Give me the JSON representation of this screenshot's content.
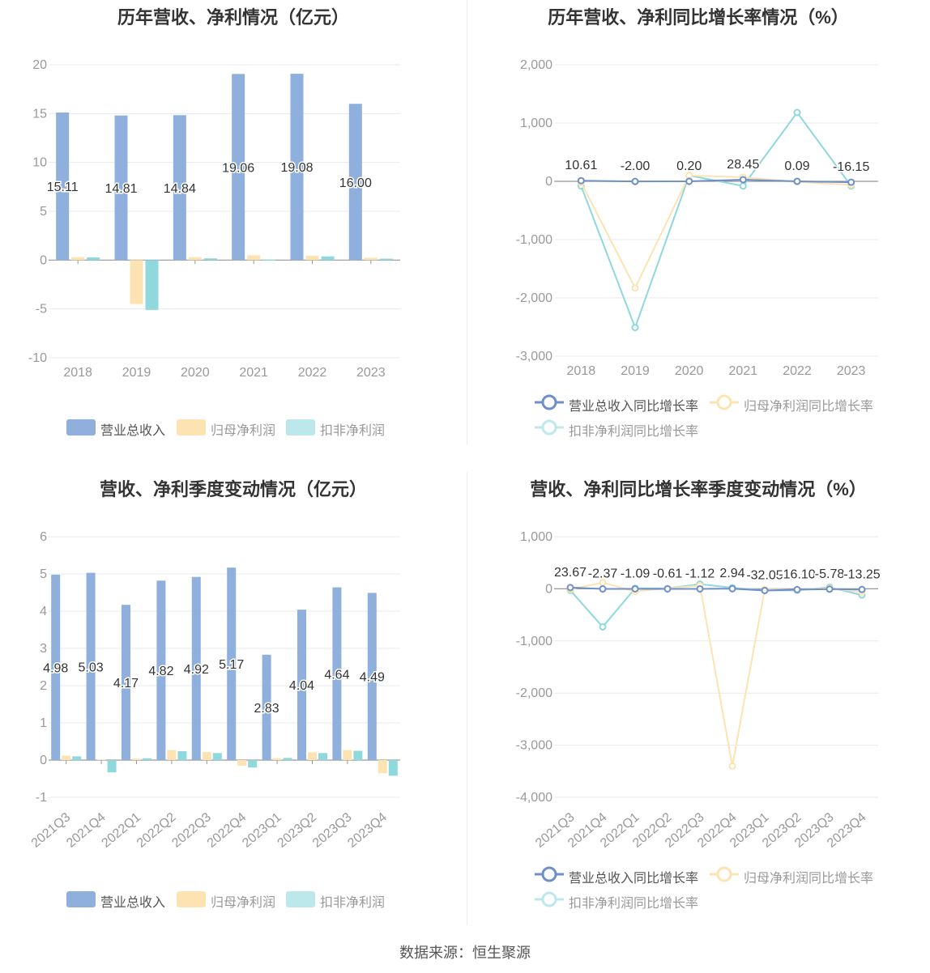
{
  "source": "数据来源：恒生聚源",
  "colors": {
    "revenue": "#8fb0dd",
    "net": "#fde3b2",
    "deducted": "#8fd8dc",
    "grid": "#e6e9f2",
    "axis": "#999999",
    "text": "#999999",
    "label": "#333333"
  },
  "legend_bar": [
    "营业总收入",
    "归母净利润",
    "扣非净利润"
  ],
  "legend_line": [
    "营业总收入同比增长率",
    "归母净利润同比增长率",
    "扣非净利润同比增长率"
  ],
  "chart_data": [
    {
      "id": "annual_values",
      "type": "bar",
      "title": "历年营收、净利情况（亿元）",
      "categories": [
        "2018",
        "2019",
        "2020",
        "2021",
        "2022",
        "2023"
      ],
      "ylim": [
        -10,
        20
      ],
      "yticks": [
        "-10",
        "-5",
        "0",
        "5",
        "10",
        "15",
        "20"
      ],
      "series": [
        {
          "name": "营业总收入",
          "values": [
            15.11,
            14.81,
            14.84,
            19.06,
            19.08,
            16.0
          ],
          "labels": [
            "15.11",
            "14.81",
            "14.84",
            "19.06",
            "19.08",
            "16.00"
          ]
        },
        {
          "name": "归母净利润",
          "values": [
            0.3,
            -4.5,
            0.3,
            0.5,
            0.45,
            0.25
          ]
        },
        {
          "name": "扣非净利润",
          "values": [
            0.28,
            -5.1,
            0.18,
            0.02,
            0.38,
            0.15
          ]
        }
      ]
    },
    {
      "id": "annual_growth",
      "type": "line",
      "title": "历年营收、净利同比增长率情况（%）",
      "categories": [
        "2018",
        "2019",
        "2020",
        "2021",
        "2022",
        "2023"
      ],
      "ylim": [
        -3000,
        2000
      ],
      "yticks": [
        "-3,000",
        "-2,000",
        "-1,000",
        "0",
        "1,000",
        "2,000"
      ],
      "series": [
        {
          "name": "营业总收入同比增长率",
          "values": [
            10.61,
            -2.0,
            0.2,
            28.45,
            0.09,
            -16.15
          ],
          "labels": [
            "10.61",
            "-2.00",
            "0.20",
            "28.45",
            "0.09",
            "-16.15"
          ]
        },
        {
          "name": "归母净利润同比增长率",
          "values": [
            -20,
            -1830,
            100,
            70,
            -10,
            -60
          ]
        },
        {
          "name": "扣非净利润同比增长率",
          "values": [
            -80,
            -2510,
            100,
            -80,
            1180,
            -80
          ]
        }
      ]
    },
    {
      "id": "quarterly_values",
      "type": "bar",
      "title": "营收、净利季度变动情况（亿元）",
      "categories": [
        "2021Q3",
        "2021Q4",
        "2022Q1",
        "2022Q2",
        "2022Q3",
        "2022Q4",
        "2023Q1",
        "2023Q2",
        "2023Q3",
        "2023Q4"
      ],
      "ylim": [
        -1,
        6
      ],
      "yticks": [
        "-1",
        "0",
        "1",
        "2",
        "3",
        "4",
        "5",
        "6"
      ],
      "series": [
        {
          "name": "营业总收入",
          "values": [
            4.98,
            5.03,
            4.17,
            4.82,
            4.92,
            5.17,
            2.83,
            4.04,
            4.64,
            4.49
          ],
          "labels": [
            "4.98",
            "5.03",
            "4.17",
            "4.82",
            "4.92",
            "5.17",
            "2.83",
            "4.04",
            "4.64",
            "4.49"
          ]
        },
        {
          "name": "归母净利润",
          "values": [
            0.12,
            0.02,
            0.04,
            0.27,
            0.22,
            -0.15,
            0.05,
            0.21,
            0.27,
            -0.35
          ]
        },
        {
          "name": "扣非净利润",
          "values": [
            0.1,
            -0.33,
            0.05,
            0.24,
            0.19,
            -0.2,
            0.06,
            0.19,
            0.25,
            -0.42
          ]
        }
      ]
    },
    {
      "id": "quarterly_growth",
      "type": "line",
      "title": "营收、净利同比增长率季度变动情况（%）",
      "categories": [
        "2021Q3",
        "2021Q4",
        "2022Q1",
        "2022Q2",
        "2022Q3",
        "2022Q4",
        "2023Q1",
        "2023Q2",
        "2023Q3",
        "2023Q4"
      ],
      "ylim": [
        -4000,
        1000
      ],
      "yticks": [
        "-4,000",
        "-3,000",
        "-2,000",
        "-1,000",
        "0",
        "1,000"
      ],
      "series": [
        {
          "name": "营业总收入同比增长率",
          "values": [
            23.67,
            -2.37,
            -1.09,
            -0.61,
            -1.12,
            2.94,
            -32.05,
            -16.1,
            -5.78,
            -13.25
          ],
          "labels": [
            "23.67",
            "-2.37",
            "-1.09",
            "-0.61",
            "-1.12",
            "2.94",
            "-32.05",
            "-16.10",
            "-5.78",
            "-13.25"
          ]
        },
        {
          "name": "归母净利润同比增长率",
          "values": [
            -10,
            120,
            -50,
            10,
            60,
            -3400,
            -10,
            -20,
            10,
            -60
          ]
        },
        {
          "name": "扣非净利润同比增长率",
          "values": [
            -30,
            -730,
            10,
            10,
            90,
            20,
            -30,
            -30,
            30,
            -120
          ]
        }
      ]
    }
  ]
}
